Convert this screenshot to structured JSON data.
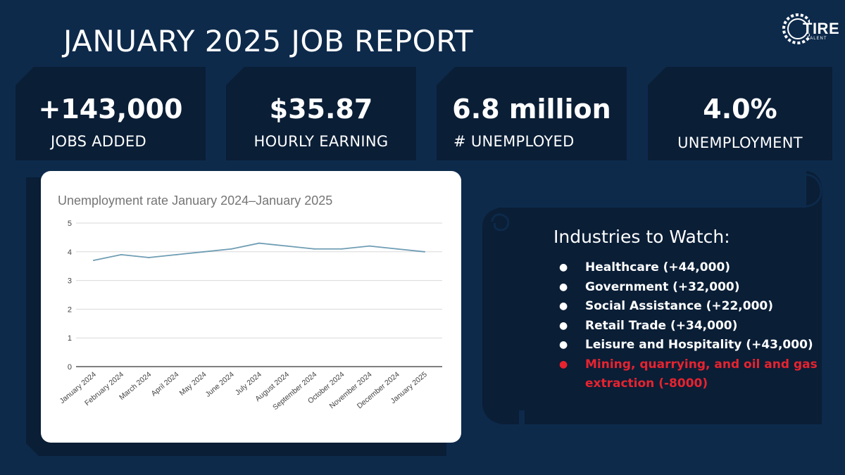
{
  "header": {
    "title": "JANUARY 2025 JOB REPORT",
    "logo_text": "TIRE",
    "logo_sub": "TALENT"
  },
  "stats": [
    {
      "value": "+143,000",
      "label": "JOBS ADDED"
    },
    {
      "value": "$35.87",
      "label": "HOURLY EARNING"
    },
    {
      "value": "6.8 million",
      "label": "# UNEMPLOYED"
    },
    {
      "value": "4.0%",
      "label": "UNEMPLOYMENT"
    }
  ],
  "industries": {
    "heading": "Industries to Watch:",
    "items": [
      {
        "text": "Healthcare (+44,000)",
        "highlight": false
      },
      {
        "text": "Government (+32,000)",
        "highlight": false
      },
      {
        "text": "Social Assistance (+22,000)",
        "highlight": false
      },
      {
        "text": "Retail Trade (+34,000)",
        "highlight": false
      },
      {
        "text": "Leisure and Hospitality (+43,000)",
        "highlight": false
      },
      {
        "text": "Mining, quarrying, and oil and gas extraction  (-8000)",
        "highlight": true
      }
    ],
    "bullet": "●",
    "highlight_color": "#e8232f"
  },
  "colors": {
    "background": "#0d2a4b",
    "card": "#0a1e36",
    "line": "#6f9db4"
  },
  "chart_data": {
    "type": "line",
    "title": "Unemployment rate January 2024–January 2025",
    "xlabel": "",
    "ylabel": "",
    "ylim": [
      0,
      5
    ],
    "yticks": [
      0,
      1,
      2,
      3,
      4,
      5
    ],
    "grid": true,
    "categories": [
      "January 2024",
      "February 2024",
      "March 2024",
      "April 2024",
      "May 2024",
      "June 2024",
      "July 2024",
      "August 2024",
      "September 2024",
      "October 2024",
      "November 2024",
      "December 2024",
      "January 2025"
    ],
    "series": [
      {
        "values": [
          3.7,
          3.9,
          3.8,
          3.9,
          4.0,
          4.1,
          4.3,
          4.2,
          4.1,
          4.1,
          4.2,
          4.1,
          4.0
        ]
      }
    ]
  }
}
